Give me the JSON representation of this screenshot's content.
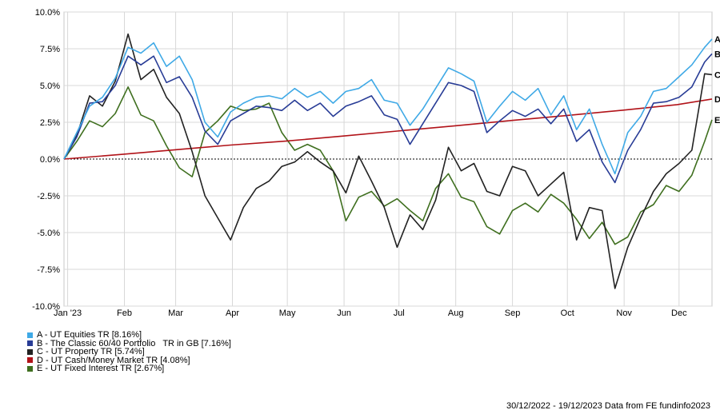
{
  "chart_data": {
    "type": "line",
    "y_ticks": [
      "10.0%",
      "7.5%",
      "5.0%",
      "2.5%",
      "0.0%",
      "-2.5%",
      "-5.0%",
      "-7.5%",
      "-10.0%"
    ],
    "x_ticks": [
      "Jan '23",
      "Feb",
      "Mar",
      "Apr",
      "May",
      "Jun",
      "Jul",
      "Aug",
      "Sep",
      "Oct",
      "Nov",
      "Dec"
    ],
    "ylim": [
      -10,
      10
    ],
    "grid": true,
    "series": [
      {
        "key": "A",
        "label": "A - UT Equities TR [8.16%]",
        "color": "#3fa9e6",
        "points": [
          [
            "2022-12-30",
            0.0
          ],
          [
            "2023-01-06",
            1.8
          ],
          [
            "2023-01-13",
            3.6
          ],
          [
            "2023-01-20",
            4.2
          ],
          [
            "2023-01-27",
            5.5
          ],
          [
            "2023-02-03",
            7.6
          ],
          [
            "2023-02-10",
            7.2
          ],
          [
            "2023-02-17",
            7.9
          ],
          [
            "2023-02-24",
            6.3
          ],
          [
            "2023-03-03",
            7.0
          ],
          [
            "2023-03-10",
            5.4
          ],
          [
            "2023-03-17",
            2.5
          ],
          [
            "2023-03-24",
            1.5
          ],
          [
            "2023-03-31",
            3.2
          ],
          [
            "2023-04-07",
            3.8
          ],
          [
            "2023-04-14",
            4.2
          ],
          [
            "2023-04-21",
            4.3
          ],
          [
            "2023-04-28",
            4.1
          ],
          [
            "2023-05-05",
            4.8
          ],
          [
            "2023-05-12",
            4.2
          ],
          [
            "2023-05-19",
            4.6
          ],
          [
            "2023-05-26",
            3.8
          ],
          [
            "2023-06-02",
            4.6
          ],
          [
            "2023-06-09",
            4.8
          ],
          [
            "2023-06-16",
            5.4
          ],
          [
            "2023-06-23",
            4.0
          ],
          [
            "2023-06-30",
            3.8
          ],
          [
            "2023-07-07",
            2.3
          ],
          [
            "2023-07-14",
            3.4
          ],
          [
            "2023-07-21",
            4.8
          ],
          [
            "2023-07-28",
            6.2
          ],
          [
            "2023-08-04",
            5.8
          ],
          [
            "2023-08-11",
            5.3
          ],
          [
            "2023-08-18",
            2.5
          ],
          [
            "2023-08-25",
            3.6
          ],
          [
            "2023-09-01",
            4.6
          ],
          [
            "2023-09-08",
            4.0
          ],
          [
            "2023-09-15",
            4.8
          ],
          [
            "2023-09-22",
            3.0
          ],
          [
            "2023-09-29",
            4.3
          ],
          [
            "2023-10-06",
            2.0
          ],
          [
            "2023-10-13",
            3.4
          ],
          [
            "2023-10-20",
            1.0
          ],
          [
            "2023-10-27",
            -1.0
          ],
          [
            "2023-11-03",
            1.8
          ],
          [
            "2023-11-10",
            2.9
          ],
          [
            "2023-11-17",
            4.6
          ],
          [
            "2023-11-24",
            4.8
          ],
          [
            "2023-12-01",
            5.6
          ],
          [
            "2023-12-08",
            6.4
          ],
          [
            "2023-12-15",
            7.6
          ],
          [
            "2023-12-19",
            8.16
          ]
        ]
      },
      {
        "key": "B",
        "label": "B - The Classic 60/40 Portfolio   TR in GB [7.16%]",
        "color": "#283c96",
        "points": [
          [
            "2022-12-30",
            0.0
          ],
          [
            "2023-01-06",
            1.5
          ],
          [
            "2023-01-13",
            3.8
          ],
          [
            "2023-01-20",
            3.9
          ],
          [
            "2023-01-27",
            5.0
          ],
          [
            "2023-02-03",
            7.0
          ],
          [
            "2023-02-10",
            6.4
          ],
          [
            "2023-02-17",
            7.0
          ],
          [
            "2023-02-24",
            5.2
          ],
          [
            "2023-03-03",
            5.6
          ],
          [
            "2023-03-10",
            4.2
          ],
          [
            "2023-03-17",
            1.9
          ],
          [
            "2023-03-24",
            1.0
          ],
          [
            "2023-03-31",
            2.6
          ],
          [
            "2023-04-07",
            3.1
          ],
          [
            "2023-04-14",
            3.6
          ],
          [
            "2023-04-21",
            3.5
          ],
          [
            "2023-04-28",
            3.3
          ],
          [
            "2023-05-05",
            4.0
          ],
          [
            "2023-05-12",
            3.3
          ],
          [
            "2023-05-19",
            3.8
          ],
          [
            "2023-05-26",
            2.9
          ],
          [
            "2023-06-02",
            3.6
          ],
          [
            "2023-06-09",
            3.9
          ],
          [
            "2023-06-16",
            4.3
          ],
          [
            "2023-06-23",
            3.0
          ],
          [
            "2023-06-30",
            2.7
          ],
          [
            "2023-07-07",
            1.0
          ],
          [
            "2023-07-14",
            2.4
          ],
          [
            "2023-07-21",
            3.8
          ],
          [
            "2023-07-28",
            5.2
          ],
          [
            "2023-08-04",
            5.0
          ],
          [
            "2023-08-11",
            4.6
          ],
          [
            "2023-08-18",
            1.8
          ],
          [
            "2023-08-25",
            2.6
          ],
          [
            "2023-09-01",
            3.3
          ],
          [
            "2023-09-08",
            2.9
          ],
          [
            "2023-09-15",
            3.4
          ],
          [
            "2023-09-22",
            2.4
          ],
          [
            "2023-09-29",
            3.4
          ],
          [
            "2023-10-06",
            1.2
          ],
          [
            "2023-10-13",
            2.0
          ],
          [
            "2023-10-20",
            -0.2
          ],
          [
            "2023-10-27",
            -1.6
          ],
          [
            "2023-11-03",
            0.6
          ],
          [
            "2023-11-10",
            2.0
          ],
          [
            "2023-11-17",
            3.8
          ],
          [
            "2023-11-24",
            3.9
          ],
          [
            "2023-12-01",
            4.2
          ],
          [
            "2023-12-08",
            4.9
          ],
          [
            "2023-12-15",
            6.6
          ],
          [
            "2023-12-19",
            7.16
          ]
        ]
      },
      {
        "key": "C",
        "label": "C - UT Property TR [5.74%]",
        "color": "#222222",
        "points": [
          [
            "2022-12-30",
            0.0
          ],
          [
            "2023-01-06",
            1.6
          ],
          [
            "2023-01-13",
            4.3
          ],
          [
            "2023-01-20",
            3.6
          ],
          [
            "2023-01-27",
            5.3
          ],
          [
            "2023-02-03",
            8.5
          ],
          [
            "2023-02-10",
            5.4
          ],
          [
            "2023-02-17",
            6.1
          ],
          [
            "2023-02-24",
            4.2
          ],
          [
            "2023-03-03",
            3.1
          ],
          [
            "2023-03-10",
            0.5
          ],
          [
            "2023-03-17",
            -2.5
          ],
          [
            "2023-03-24",
            -4.0
          ],
          [
            "2023-03-31",
            -5.5
          ],
          [
            "2023-04-07",
            -3.3
          ],
          [
            "2023-04-14",
            -2.0
          ],
          [
            "2023-04-21",
            -1.5
          ],
          [
            "2023-04-28",
            -0.5
          ],
          [
            "2023-05-05",
            -0.2
          ],
          [
            "2023-05-12",
            0.5
          ],
          [
            "2023-05-19",
            -0.2
          ],
          [
            "2023-05-26",
            -0.8
          ],
          [
            "2023-06-02",
            -2.3
          ],
          [
            "2023-06-09",
            0.2
          ],
          [
            "2023-06-16",
            -1.5
          ],
          [
            "2023-06-23",
            -3.3
          ],
          [
            "2023-06-30",
            -6.0
          ],
          [
            "2023-07-07",
            -3.8
          ],
          [
            "2023-07-14",
            -4.8
          ],
          [
            "2023-07-21",
            -2.8
          ],
          [
            "2023-07-28",
            0.8
          ],
          [
            "2023-08-04",
            -0.8
          ],
          [
            "2023-08-11",
            -0.3
          ],
          [
            "2023-08-18",
            -2.2
          ],
          [
            "2023-08-25",
            -2.5
          ],
          [
            "2023-09-01",
            -0.5
          ],
          [
            "2023-09-08",
            -0.8
          ],
          [
            "2023-09-15",
            -2.5
          ],
          [
            "2023-09-22",
            -1.7
          ],
          [
            "2023-09-29",
            -0.9
          ],
          [
            "2023-10-06",
            -5.5
          ],
          [
            "2023-10-13",
            -3.3
          ],
          [
            "2023-10-20",
            -3.5
          ],
          [
            "2023-10-27",
            -8.8
          ],
          [
            "2023-11-03",
            -6.0
          ],
          [
            "2023-11-10",
            -4.0
          ],
          [
            "2023-11-17",
            -2.2
          ],
          [
            "2023-11-24",
            -1.0
          ],
          [
            "2023-12-01",
            -0.3
          ],
          [
            "2023-12-08",
            0.6
          ],
          [
            "2023-12-15",
            5.8
          ],
          [
            "2023-12-19",
            5.74
          ]
        ]
      },
      {
        "key": "D",
        "label": "D - UT Cash/Money Market TR [4.08%]",
        "color": "#b11218",
        "points": [
          [
            "2022-12-30",
            0.0
          ],
          [
            "2023-01-31",
            0.32
          ],
          [
            "2023-02-28",
            0.62
          ],
          [
            "2023-03-31",
            0.95
          ],
          [
            "2023-04-30",
            1.22
          ],
          [
            "2023-05-31",
            1.56
          ],
          [
            "2023-06-30",
            1.9
          ],
          [
            "2023-07-31",
            2.25
          ],
          [
            "2023-08-31",
            2.62
          ],
          [
            "2023-09-30",
            2.95
          ],
          [
            "2023-10-31",
            3.32
          ],
          [
            "2023-11-30",
            3.7
          ],
          [
            "2023-12-19",
            4.08
          ]
        ]
      },
      {
        "key": "E",
        "label": "E - UT Fixed Interest TR [2.67%]",
        "color": "#3f6f1f",
        "points": [
          [
            "2022-12-30",
            0.0
          ],
          [
            "2023-01-06",
            1.2
          ],
          [
            "2023-01-13",
            2.6
          ],
          [
            "2023-01-20",
            2.2
          ],
          [
            "2023-01-27",
            3.1
          ],
          [
            "2023-02-03",
            4.9
          ],
          [
            "2023-02-10",
            3.0
          ],
          [
            "2023-02-17",
            2.6
          ],
          [
            "2023-02-24",
            0.9
          ],
          [
            "2023-03-03",
            -0.6
          ],
          [
            "2023-03-10",
            -1.2
          ],
          [
            "2023-03-17",
            1.8
          ],
          [
            "2023-03-24",
            2.6
          ],
          [
            "2023-03-31",
            3.6
          ],
          [
            "2023-04-07",
            3.3
          ],
          [
            "2023-04-14",
            3.4
          ],
          [
            "2023-04-21",
            3.8
          ],
          [
            "2023-04-28",
            1.8
          ],
          [
            "2023-05-05",
            0.6
          ],
          [
            "2023-05-12",
            1.0
          ],
          [
            "2023-05-19",
            0.6
          ],
          [
            "2023-05-26",
            -0.8
          ],
          [
            "2023-06-02",
            -4.2
          ],
          [
            "2023-06-09",
            -2.6
          ],
          [
            "2023-06-16",
            -2.2
          ],
          [
            "2023-06-23",
            -3.2
          ],
          [
            "2023-06-30",
            -2.7
          ],
          [
            "2023-07-07",
            -3.5
          ],
          [
            "2023-07-14",
            -4.2
          ],
          [
            "2023-07-21",
            -2.0
          ],
          [
            "2023-07-28",
            -1.0
          ],
          [
            "2023-08-04",
            -2.6
          ],
          [
            "2023-08-11",
            -2.9
          ],
          [
            "2023-08-18",
            -4.6
          ],
          [
            "2023-08-25",
            -5.1
          ],
          [
            "2023-09-01",
            -3.5
          ],
          [
            "2023-09-08",
            -3.0
          ],
          [
            "2023-09-15",
            -3.6
          ],
          [
            "2023-09-22",
            -2.4
          ],
          [
            "2023-09-29",
            -3.0
          ],
          [
            "2023-10-06",
            -4.1
          ],
          [
            "2023-10-13",
            -5.4
          ],
          [
            "2023-10-20",
            -4.3
          ],
          [
            "2023-10-27",
            -5.8
          ],
          [
            "2023-11-03",
            -5.3
          ],
          [
            "2023-11-10",
            -3.6
          ],
          [
            "2023-11-17",
            -3.1
          ],
          [
            "2023-11-24",
            -1.8
          ],
          [
            "2023-12-01",
            -2.2
          ],
          [
            "2023-12-08",
            -1.1
          ],
          [
            "2023-12-15",
            1.2
          ],
          [
            "2023-12-19",
            2.67
          ]
        ]
      }
    ]
  },
  "footer": "30/12/2022 - 19/12/2023 Data from FE fundinfo2023"
}
